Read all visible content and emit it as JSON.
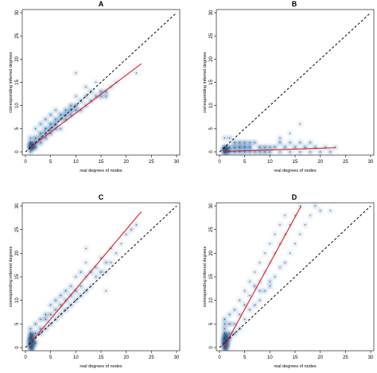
{
  "chart_data": [
    {
      "type": "scatter",
      "panel": "A",
      "xlabel": "real degrees of nodes",
      "ylabel": "corresponding inferred degrees",
      "xlim": [
        0,
        30
      ],
      "ylim": [
        0,
        30
      ],
      "xticks": [
        0,
        5,
        10,
        15,
        20,
        25,
        30
      ],
      "yticks": [
        0,
        5,
        10,
        15,
        20,
        25,
        30
      ],
      "density_color": "#2b6fb0",
      "fit_color": "#e0191f",
      "diagonal": {
        "x": [
          0,
          30
        ],
        "y": [
          0,
          30
        ]
      },
      "fit_line": {
        "x": [
          1,
          23
        ],
        "y": [
          1.0,
          19.0
        ]
      },
      "points": [
        [
          1,
          0
        ],
        [
          1,
          1
        ],
        [
          1,
          2
        ],
        [
          2,
          1
        ],
        [
          2,
          2
        ],
        [
          2,
          3
        ],
        [
          3,
          2
        ],
        [
          3,
          3
        ],
        [
          3,
          4
        ],
        [
          4,
          3
        ],
        [
          4,
          4
        ],
        [
          4,
          5
        ],
        [
          5,
          4
        ],
        [
          5,
          5
        ],
        [
          5,
          6
        ],
        [
          6,
          5
        ],
        [
          6,
          6
        ],
        [
          6,
          7
        ],
        [
          7,
          5
        ],
        [
          7,
          7
        ],
        [
          7,
          8
        ],
        [
          8,
          7
        ],
        [
          8,
          8
        ],
        [
          8,
          9
        ],
        [
          9,
          8
        ],
        [
          9,
          9
        ],
        [
          9,
          10
        ],
        [
          10,
          9
        ],
        [
          10,
          10
        ],
        [
          10,
          12
        ],
        [
          11,
          9
        ],
        [
          11,
          11
        ],
        [
          12,
          10
        ],
        [
          12,
          12
        ],
        [
          12,
          14
        ],
        [
          13,
          11
        ],
        [
          13,
          13
        ],
        [
          14,
          12
        ],
        [
          15,
          12
        ],
        [
          15,
          13
        ],
        [
          16,
          13
        ],
        [
          17,
          14
        ],
        [
          10,
          17
        ],
        [
          16,
          12
        ],
        [
          14,
          15
        ],
        [
          18,
          15
        ],
        [
          22,
          17
        ],
        [
          1,
          3
        ],
        [
          2,
          5
        ],
        [
          3,
          6
        ],
        [
          5,
          8
        ],
        [
          4,
          7
        ],
        [
          6,
          9
        ]
      ]
    },
    {
      "type": "scatter",
      "panel": "B",
      "xlabel": "real degrees of nodes",
      "ylabel": "corresponding inferred degrees",
      "xlim": [
        0,
        30
      ],
      "ylim": [
        0,
        30
      ],
      "xticks": [
        0,
        5,
        10,
        15,
        20,
        25,
        30
      ],
      "yticks": [
        0,
        5,
        10,
        15,
        20,
        25,
        30
      ],
      "density_color": "#2b6fb0",
      "fit_color": "#e0191f",
      "diagonal": {
        "x": [
          0,
          30
        ],
        "y": [
          0,
          30
        ]
      },
      "fit_line": {
        "x": [
          1,
          23
        ],
        "y": [
          0.1,
          0.9
        ]
      },
      "points": [
        [
          1,
          0
        ],
        [
          1,
          1
        ],
        [
          2,
          0
        ],
        [
          2,
          1
        ],
        [
          3,
          0
        ],
        [
          3,
          1
        ],
        [
          4,
          0
        ],
        [
          4,
          1
        ],
        [
          5,
          0
        ],
        [
          5,
          1
        ],
        [
          6,
          0
        ],
        [
          6,
          1
        ],
        [
          7,
          0
        ],
        [
          7,
          2
        ],
        [
          8,
          0
        ],
        [
          8,
          1
        ],
        [
          9,
          0
        ],
        [
          9,
          1
        ],
        [
          10,
          1
        ],
        [
          10,
          0
        ],
        [
          11,
          1
        ],
        [
          12,
          0
        ],
        [
          12,
          2
        ],
        [
          13,
          1
        ],
        [
          14,
          0
        ],
        [
          14,
          2
        ],
        [
          15,
          1
        ],
        [
          16,
          0
        ],
        [
          16,
          2
        ],
        [
          17,
          1
        ],
        [
          18,
          0
        ],
        [
          18,
          2
        ],
        [
          19,
          1
        ],
        [
          20,
          0
        ],
        [
          21,
          1
        ],
        [
          22,
          0
        ],
        [
          23,
          1
        ],
        [
          1,
          3
        ],
        [
          2,
          3
        ],
        [
          3,
          2
        ],
        [
          4,
          2
        ],
        [
          5,
          2
        ],
        [
          6,
          2
        ],
        [
          12,
          3
        ],
        [
          14,
          4
        ],
        [
          16,
          6
        ]
      ]
    },
    {
      "type": "scatter",
      "panel": "C",
      "xlabel": "real degrees of nodes",
      "ylabel": "corresponding inferred degrees",
      "xlim": [
        0,
        30
      ],
      "ylim": [
        0,
        30
      ],
      "xticks": [
        0,
        5,
        10,
        15,
        20,
        25,
        30
      ],
      "yticks": [
        0,
        5,
        10,
        15,
        20,
        25,
        30
      ],
      "density_color": "#2b6fb0",
      "fit_color": "#e0191f",
      "diagonal": {
        "x": [
          0,
          30
        ],
        "y": [
          0,
          30
        ]
      },
      "fit_line": {
        "x": [
          1,
          23
        ],
        "y": [
          1.0,
          28.8
        ]
      },
      "points": [
        [
          1,
          0
        ],
        [
          1,
          1
        ],
        [
          1,
          2
        ],
        [
          1,
          3
        ],
        [
          1,
          4
        ],
        [
          2,
          1
        ],
        [
          2,
          3
        ],
        [
          2,
          5
        ],
        [
          3,
          3
        ],
        [
          3,
          4
        ],
        [
          3,
          6
        ],
        [
          4,
          4
        ],
        [
          4,
          6
        ],
        [
          4,
          7
        ],
        [
          5,
          5
        ],
        [
          5,
          7
        ],
        [
          5,
          9
        ],
        [
          6,
          6
        ],
        [
          6,
          8
        ],
        [
          6,
          10
        ],
        [
          7,
          7
        ],
        [
          7,
          9
        ],
        [
          7,
          11
        ],
        [
          8,
          8
        ],
        [
          8,
          10
        ],
        [
          8,
          12
        ],
        [
          9,
          9
        ],
        [
          9,
          11
        ],
        [
          9,
          13
        ],
        [
          10,
          10
        ],
        [
          10,
          12
        ],
        [
          10,
          15
        ],
        [
          11,
          11
        ],
        [
          11,
          13
        ],
        [
          11,
          16
        ],
        [
          12,
          12
        ],
        [
          12,
          15
        ],
        [
          12,
          18
        ],
        [
          13,
          13
        ],
        [
          13,
          16
        ],
        [
          14,
          15
        ],
        [
          14,
          17
        ],
        [
          15,
          16
        ],
        [
          15,
          19
        ],
        [
          16,
          16
        ],
        [
          16,
          18
        ],
        [
          17,
          18
        ],
        [
          17,
          21
        ],
        [
          18,
          20
        ],
        [
          19,
          22
        ],
        [
          20,
          24
        ],
        [
          21,
          25
        ],
        [
          22,
          26
        ],
        [
          12,
          21
        ],
        [
          16,
          12
        ]
      ]
    },
    {
      "type": "scatter",
      "panel": "D",
      "xlabel": "real degrees of nodes",
      "ylabel": "corresponding inferred degrees",
      "xlim": [
        0,
        30
      ],
      "ylim": [
        0,
        30
      ],
      "xticks": [
        0,
        5,
        10,
        15,
        20,
        25,
        30
      ],
      "yticks": [
        0,
        5,
        10,
        15,
        20,
        25,
        30
      ],
      "density_color": "#2b6fb0",
      "fit_color": "#e0191f",
      "diagonal": {
        "x": [
          0,
          30
        ],
        "y": [
          0,
          30
        ]
      },
      "fit_line": {
        "x": [
          1,
          16.2
        ],
        "y": [
          0.3,
          30
        ]
      },
      "points": [
        [
          1,
          0
        ],
        [
          1,
          1
        ],
        [
          1,
          2
        ],
        [
          1,
          3
        ],
        [
          1,
          4
        ],
        [
          1,
          5
        ],
        [
          1,
          6
        ],
        [
          2,
          2
        ],
        [
          2,
          3
        ],
        [
          2,
          5
        ],
        [
          2,
          7
        ],
        [
          3,
          3
        ],
        [
          3,
          5
        ],
        [
          3,
          8
        ],
        [
          4,
          4
        ],
        [
          4,
          7
        ],
        [
          4,
          10
        ],
        [
          5,
          6
        ],
        [
          5,
          9
        ],
        [
          5,
          12
        ],
        [
          6,
          8
        ],
        [
          6,
          11
        ],
        [
          6,
          14
        ],
        [
          7,
          9
        ],
        [
          7,
          13
        ],
        [
          7,
          16
        ],
        [
          8,
          10
        ],
        [
          8,
          14
        ],
        [
          8,
          18
        ],
        [
          9,
          12
        ],
        [
          9,
          16
        ],
        [
          9,
          20
        ],
        [
          10,
          14
        ],
        [
          10,
          18
        ],
        [
          10,
          22
        ],
        [
          11,
          15
        ],
        [
          11,
          20
        ],
        [
          11,
          24
        ],
        [
          12,
          17
        ],
        [
          12,
          22
        ],
        [
          12,
          26
        ],
        [
          13,
          18
        ],
        [
          13,
          24
        ],
        [
          13,
          28
        ],
        [
          14,
          20
        ],
        [
          14,
          26
        ],
        [
          15,
          22
        ],
        [
          15,
          28
        ],
        [
          16,
          24
        ],
        [
          16,
          30
        ],
        [
          17,
          26
        ],
        [
          18,
          28
        ],
        [
          19,
          30
        ],
        [
          20,
          29
        ],
        [
          22,
          29
        ],
        [
          10,
          13
        ],
        [
          8,
          12
        ]
      ]
    }
  ]
}
